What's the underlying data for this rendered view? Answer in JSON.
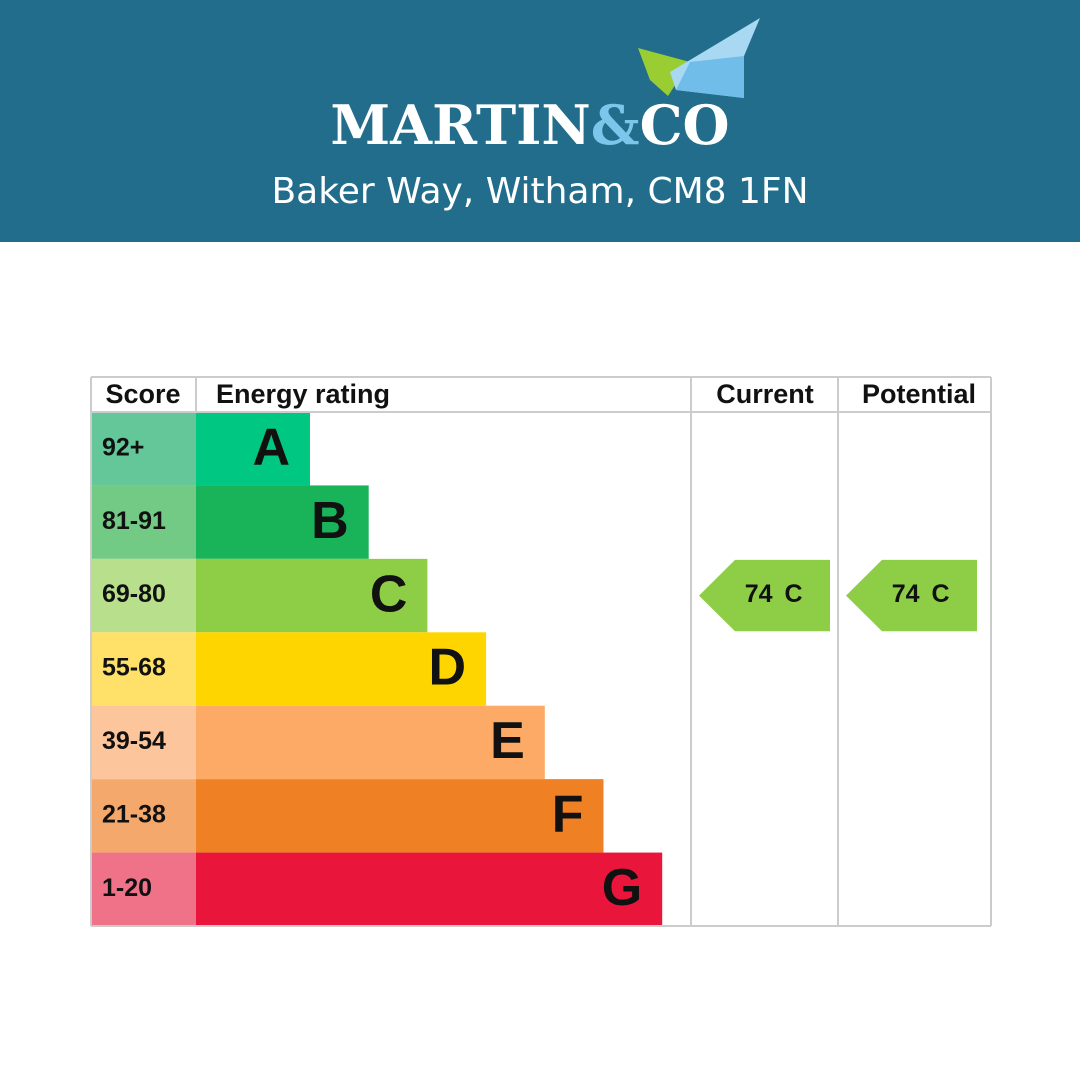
{
  "header": {
    "brand": {
      "name": "MARTIN",
      "amp": "&",
      "co": "CO"
    },
    "address": "Baker Way, Witham, CM8 1FN",
    "background": "#216d8b"
  },
  "epc": {
    "columns": [
      "Score",
      "Energy rating",
      "Current",
      "Potential"
    ],
    "bands": [
      {
        "score": "92+",
        "rating": "A",
        "color": "#00c781",
        "score_color": "#63c79a"
      },
      {
        "score": "81-91",
        "rating": "B",
        "color": "#19b459",
        "score_color": "#72ca84"
      },
      {
        "score": "69-80",
        "rating": "C",
        "color": "#8dce46",
        "score_color": "#b8df8b"
      },
      {
        "score": "55-68",
        "rating": "D",
        "color": "#ffd500",
        "score_color": "#ffe169"
      },
      {
        "score": "39-54",
        "rating": "E",
        "color": "#fcaa65",
        "score_color": "#fdc59b"
      },
      {
        "score": "21-38",
        "rating": "F",
        "color": "#ef8023",
        "score_color": "#f4a86b"
      },
      {
        "score": "1-20",
        "rating": "G",
        "color": "#e9153b",
        "score_color": "#f07289"
      }
    ],
    "current": {
      "score": 74,
      "rating": "C"
    },
    "potential": {
      "score": 74,
      "rating": "C"
    }
  }
}
